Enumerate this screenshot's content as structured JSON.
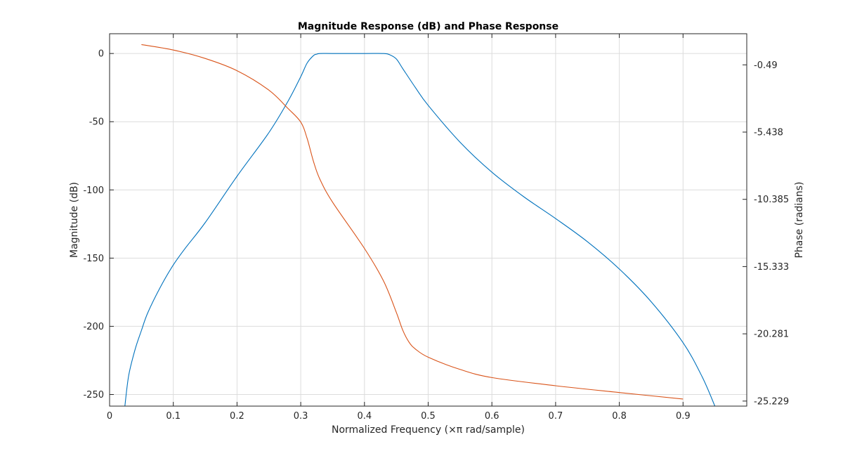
{
  "chart_data": {
    "type": "line",
    "title": "Magnitude Response (dB) and Phase Response",
    "xlabel": "Normalized Frequency (×π rad/sample)",
    "ylabel_left": "Magnitude (dB)",
    "ylabel_right": "Phase (radians)",
    "xlim": [
      0,
      1
    ],
    "ylim_left": [
      -258.5,
      14.5
    ],
    "ylim_right": [
      -25.6,
      1.8
    ],
    "x_ticks": [
      "0",
      "0.1",
      "0.2",
      "0.3",
      "0.4",
      "0.5",
      "0.6",
      "0.7",
      "0.8",
      "0.9"
    ],
    "x_tick_values": [
      0,
      0.1,
      0.2,
      0.3,
      0.4,
      0.5,
      0.6,
      0.7,
      0.8,
      0.9
    ],
    "y_ticks_left": [
      "0",
      "-50",
      "-100",
      "-150",
      "-200",
      "-250"
    ],
    "y_tick_values_left": [
      0,
      -50,
      -100,
      -150,
      -200,
      -250
    ],
    "y_ticks_right": [
      "-0.49",
      "-5.438",
      "-10.385",
      "-15.333",
      "-20.281",
      "-25.229"
    ],
    "y_tick_values_right": [
      -0.49,
      -5.438,
      -10.385,
      -15.333,
      -20.281,
      -25.229
    ],
    "grid": true,
    "colors": {
      "magnitude": "#0072BD",
      "phase": "#D95319",
      "grid": "#dcdcdc",
      "axis": "#262626"
    },
    "series": [
      {
        "axis": "left",
        "x": [
          0.024,
          0.03,
          0.04,
          0.05,
          0.06,
          0.08,
          0.1,
          0.12,
          0.15,
          0.2,
          0.25,
          0.28,
          0.3,
          0.31,
          0.32,
          0.325,
          0.33,
          0.35,
          0.4,
          0.43,
          0.44,
          0.45,
          0.46,
          0.48,
          0.5,
          0.55,
          0.6,
          0.65,
          0.7,
          0.75,
          0.8,
          0.85,
          0.9,
          0.93,
          0.95
        ],
        "y": [
          -258.5,
          -236,
          -217,
          -203,
          -190,
          -171,
          -155,
          -142,
          -124,
          -90,
          -58,
          -35,
          -17,
          -7,
          -1.5,
          -0.5,
          0,
          0,
          0,
          0,
          -1,
          -4,
          -11,
          -25,
          -38,
          -65,
          -87,
          -105,
          -121,
          -138,
          -158,
          -182,
          -212,
          -237,
          -258.5
        ]
      },
      {
        "axis": "right",
        "x": [
          0.05,
          0.1,
          0.15,
          0.2,
          0.25,
          0.28,
          0.3,
          0.31,
          0.32,
          0.33,
          0.35,
          0.4,
          0.43,
          0.45,
          0.46,
          0.47,
          0.48,
          0.5,
          0.55,
          0.6,
          0.7,
          0.8,
          0.9
        ],
        "y": [
          1.0,
          0.6,
          -0.02,
          -0.92,
          -2.35,
          -3.7,
          -4.7,
          -5.9,
          -7.6,
          -8.9,
          -10.6,
          -14.0,
          -16.4,
          -18.7,
          -20.0,
          -20.9,
          -21.4,
          -22.0,
          -22.9,
          -23.5,
          -24.1,
          -24.6,
          -25.08
        ]
      }
    ]
  }
}
